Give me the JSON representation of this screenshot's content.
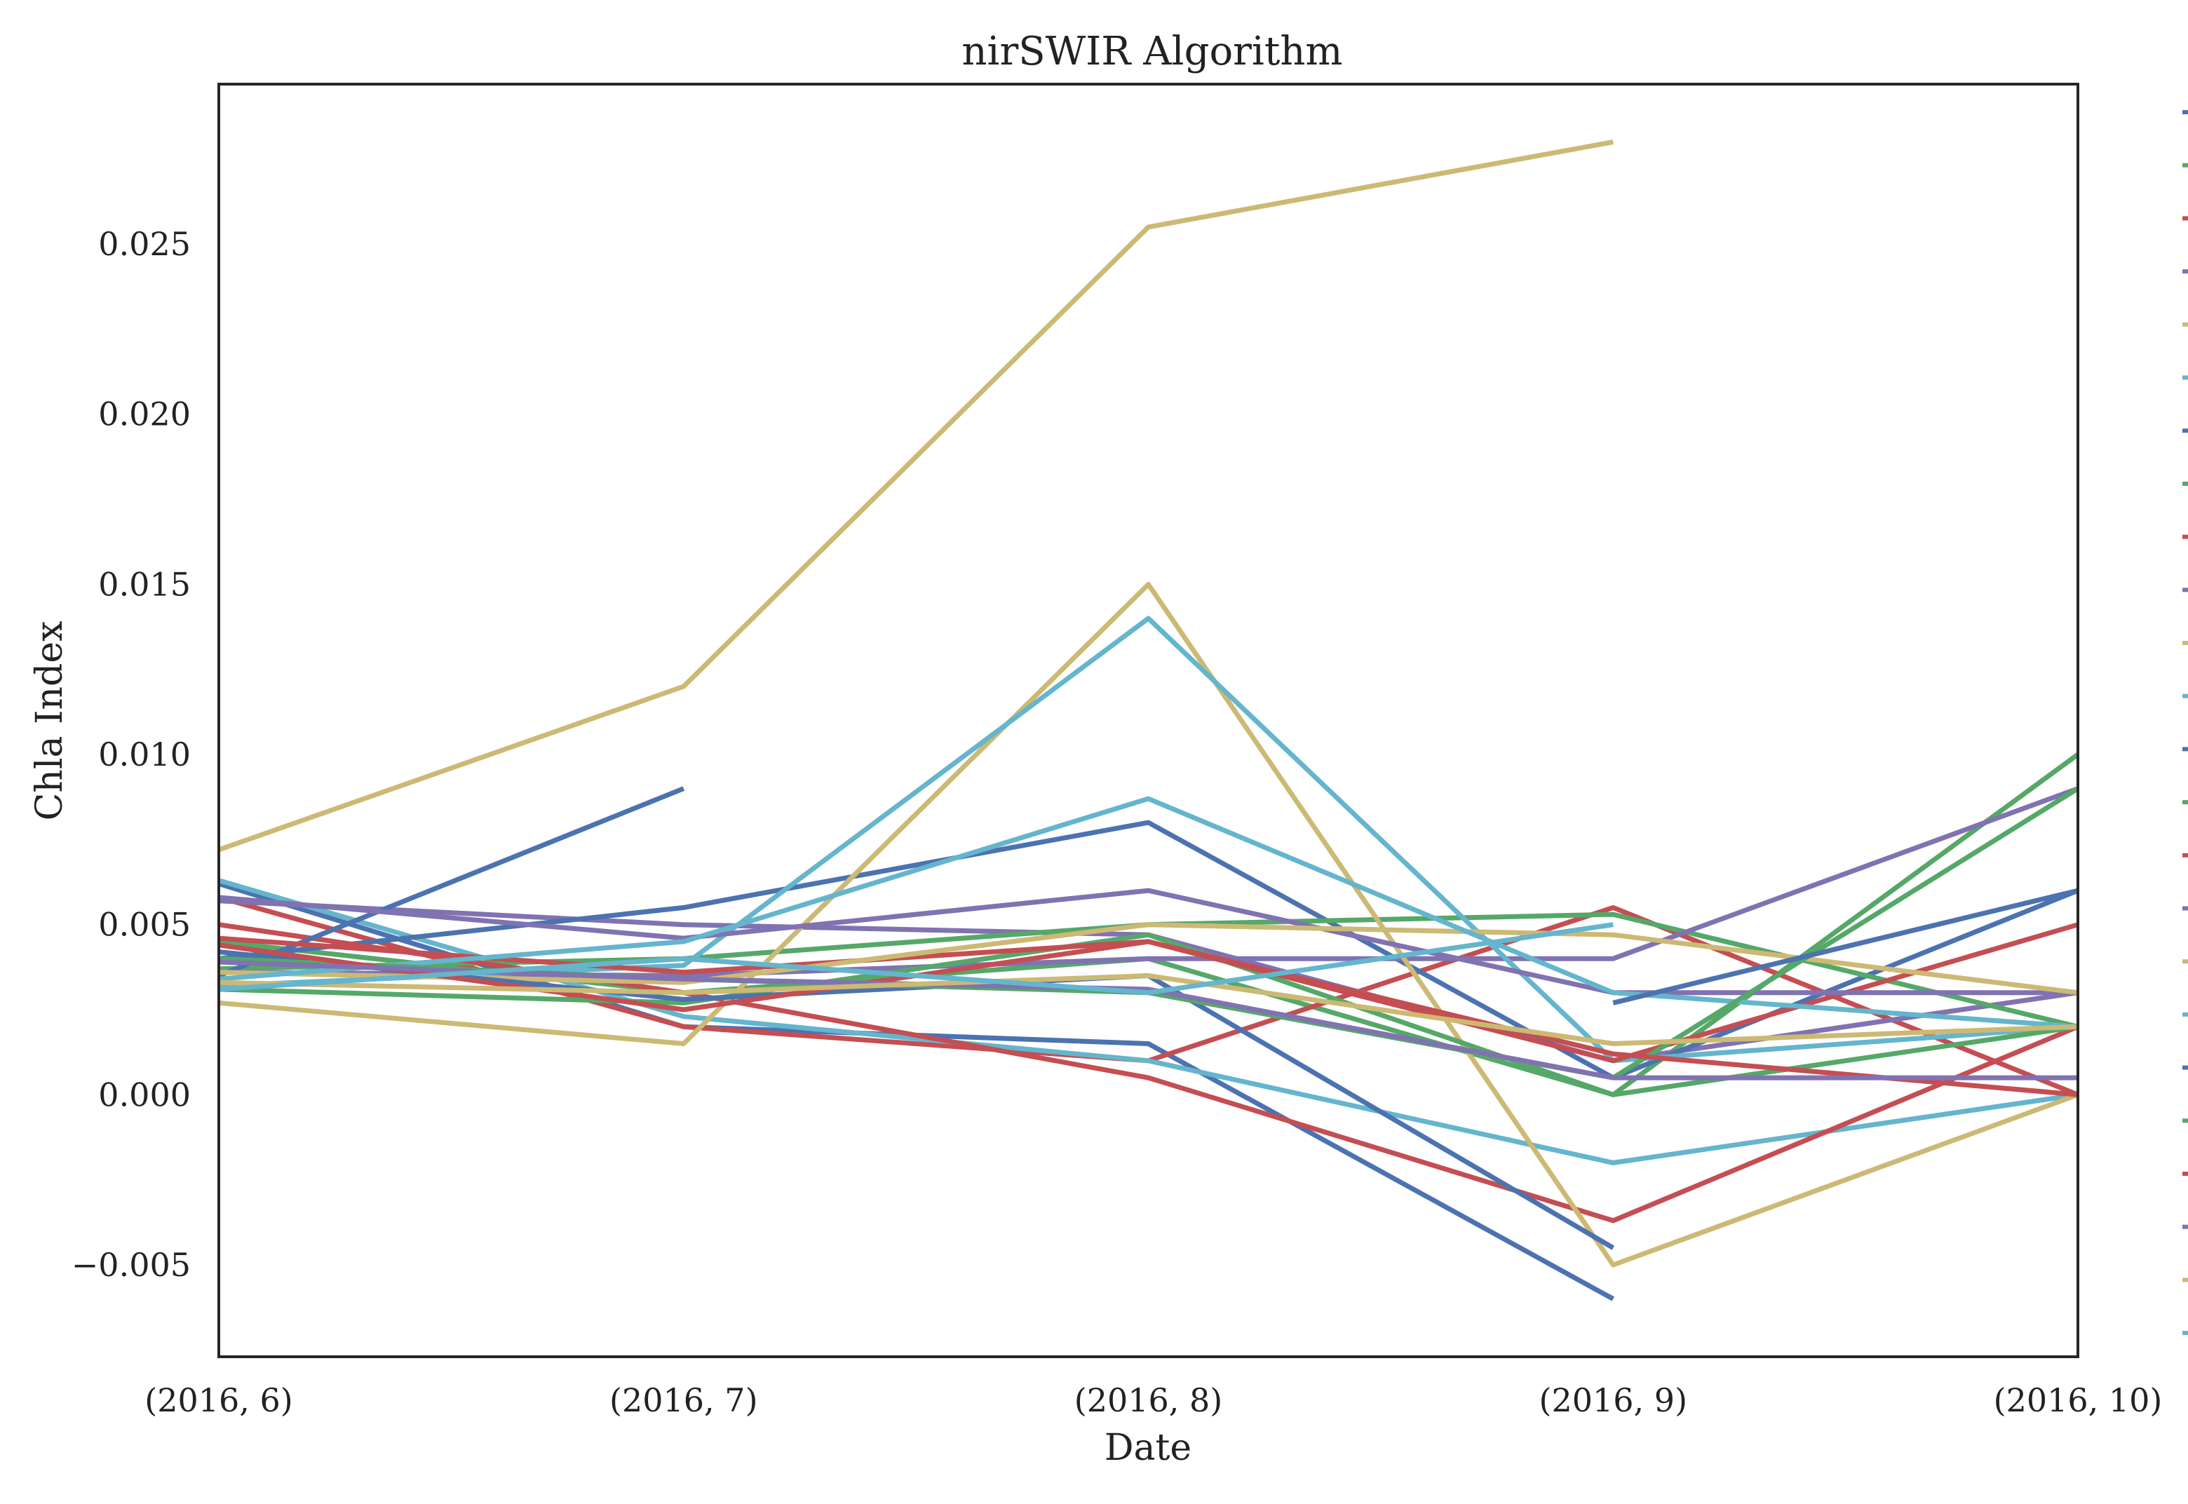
{
  "chart_data": {
    "type": "line",
    "title": "nirSWIR Algorithm",
    "xlabel": "Date",
    "ylabel": "Chla Index",
    "x": [
      "(2016, 6)",
      "(2016, 7)",
      "(2016, 8)",
      "(2016, 9)",
      "(2016, 10)"
    ],
    "ylim": [
      -0.0077,
      0.0297
    ],
    "yticks": [
      {
        "value": -0.005,
        "label": "−0.005"
      },
      {
        "value": 0.0,
        "label": "0.000"
      },
      {
        "value": 0.005,
        "label": "0.005"
      },
      {
        "value": 0.01,
        "label": "0.010"
      },
      {
        "value": 0.015,
        "label": "0.015"
      },
      {
        "value": 0.02,
        "label": "0.020"
      },
      {
        "value": 0.025,
        "label": "0.025"
      }
    ],
    "grid": false,
    "legend": "right (markers only, labels not visible)",
    "colors": {
      "blue": "#4c72b0",
      "green": "#55a868",
      "red": "#c44e52",
      "purple": "#8172b2",
      "yellow": "#ccb974",
      "cyan": "#64b5cd"
    },
    "legend_colors": [
      "blue",
      "green",
      "red",
      "purple",
      "yellow",
      "cyan",
      "blue",
      "green",
      "red",
      "purple",
      "yellow",
      "cyan",
      "blue",
      "green",
      "red",
      "purple",
      "yellow",
      "cyan",
      "blue",
      "green",
      "red",
      "purple",
      "yellow",
      "cyan"
    ],
    "series": [
      {
        "color": "blue",
        "values": [
          0.0062,
          0.002,
          0.0015,
          -0.006,
          null
        ]
      },
      {
        "color": "green",
        "values": [
          0.0045,
          0.003,
          0.004,
          0.0,
          0.01
        ]
      },
      {
        "color": "red",
        "values": [
          0.0058,
          0.002,
          0.001,
          0.0055,
          0.0
        ]
      },
      {
        "color": "purple",
        "values": [
          0.0057,
          0.005,
          0.0047,
          0.001,
          0.003
        ]
      },
      {
        "color": "yellow",
        "values": [
          0.0072,
          0.012,
          0.0255,
          0.028,
          null
        ]
      },
      {
        "color": "cyan",
        "values": [
          0.0063,
          0.0023,
          0.001,
          -0.002,
          0.0
        ]
      },
      {
        "color": "blue",
        "values": [
          0.004,
          0.0055,
          0.008,
          0.0005,
          0.006
        ]
      },
      {
        "color": "green",
        "values": [
          0.0037,
          0.004,
          0.005,
          0.0053,
          0.002
        ]
      },
      {
        "color": "red",
        "values": [
          0.005,
          0.003,
          0.0005,
          -0.0037,
          0.002
        ]
      },
      {
        "color": "purple",
        "values": [
          0.0036,
          0.0035,
          0.004,
          0.004,
          0.009
        ]
      },
      {
        "color": "yellow",
        "values": [
          0.0027,
          0.0015,
          0.015,
          -0.005,
          0.0
        ]
      },
      {
        "color": "cyan",
        "values": [
          0.0032,
          0.0038,
          0.014,
          0.001,
          0.002
        ]
      },
      {
        "color": "blue",
        "values": [
          0.0035,
          0.009,
          null,
          null,
          null
        ]
      },
      {
        "color": "green",
        "values": [
          0.0031,
          0.0027,
          0.0047,
          0.0,
          0.002
        ]
      },
      {
        "color": "red",
        "values": [
          0.0046,
          0.0036,
          0.0045,
          0.001,
          0.005
        ]
      },
      {
        "color": "purple",
        "values": [
          0.0058,
          0.0046,
          0.006,
          0.003,
          0.003
        ]
      },
      {
        "color": "yellow",
        "values": [
          0.0036,
          0.0033,
          0.005,
          0.0047,
          0.003
        ]
      },
      {
        "color": "cyan",
        "values": [
          0.0034,
          0.0045,
          0.0087,
          0.003,
          0.002
        ]
      },
      {
        "color": "blue",
        "values": [
          0.0042,
          0.0028,
          0.0035,
          -0.0045,
          null
        ]
      },
      {
        "color": "green",
        "values": [
          0.004,
          0.0034,
          0.003,
          0.0005,
          0.009
        ]
      },
      {
        "color": "red",
        "values": [
          0.0044,
          0.0025,
          0.0045,
          0.0012,
          0.0
        ]
      },
      {
        "color": "purple",
        "values": [
          0.0039,
          0.0034,
          0.0031,
          0.0005,
          0.0005
        ]
      },
      {
        "color": "yellow",
        "values": [
          0.0033,
          0.003,
          0.0035,
          0.0015,
          0.002
        ]
      },
      {
        "color": "cyan",
        "values": [
          0.0031,
          0.004,
          0.003,
          0.005,
          null
        ]
      },
      {
        "color": "blue",
        "values": [
          null,
          null,
          null,
          0.0027,
          0.006
        ]
      }
    ]
  }
}
